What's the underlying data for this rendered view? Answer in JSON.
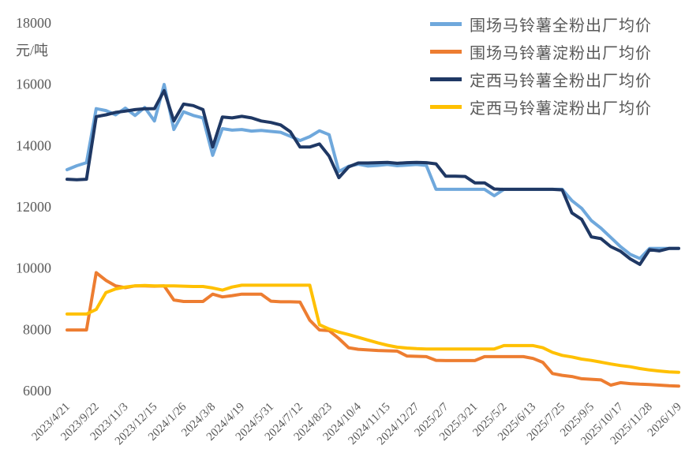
{
  "chart_data": {
    "type": "line",
    "title": "",
    "unit_label": "元/吨",
    "text_color": "#595959",
    "background_color": "#ffffff",
    "grid": false,
    "legend_position": "top-right",
    "ylim": [
      6000,
      18000
    ],
    "y_ticks": [
      18000,
      16000,
      14000,
      12000,
      10000,
      8000,
      6000
    ],
    "x_labels": [
      "2023/4/21",
      "2023/9/22",
      "2023/11/3",
      "2023/12/15",
      "2024/1/26",
      "2024/3/8",
      "2024/4/19",
      "2024/5/31",
      "2024/7/12",
      "2024/8/23",
      "2024/10/4",
      "2024/11/15",
      "2024/12/27",
      "2025/2/7",
      "2025/3/21",
      "2025/5/2",
      "2025/6/13",
      "2025/7/25",
      "2025/9/5",
      "2025/10/17",
      "2025/11/28",
      "2026/1/9"
    ],
    "label_every": 3,
    "series": [
      {
        "name": "围场马铃薯全粉出厂均价",
        "color": "#6FA8DC",
        "values": [
          13210,
          13340,
          13440,
          15200,
          15140,
          15000,
          15220,
          14980,
          15240,
          14800,
          15990,
          14520,
          15100,
          14980,
          14900,
          13680,
          14550,
          14500,
          14520,
          14470,
          14490,
          14460,
          14430,
          14300,
          14160,
          14290,
          14480,
          14350,
          13150,
          13320,
          13390,
          13330,
          13350,
          13380,
          13340,
          13360,
          13380,
          13350,
          12570,
          12570,
          12570,
          12570,
          12570,
          12570,
          12360,
          12570,
          12570,
          12570,
          12570,
          12570,
          12570,
          12570,
          12200,
          11950,
          11550,
          11300,
          11000,
          10700,
          10450,
          10310,
          10640,
          10640,
          10640,
          10640
        ]
      },
      {
        "name": "围场马铃薯淀粉出厂均价",
        "color": "#ED7D31",
        "values": [
          7980,
          7980,
          7980,
          9850,
          9600,
          9420,
          9360,
          9420,
          9420,
          9410,
          9420,
          8960,
          8910,
          8910,
          8910,
          9150,
          9060,
          9100,
          9150,
          9150,
          9150,
          8920,
          8900,
          8900,
          8890,
          8300,
          7980,
          7960,
          7700,
          7400,
          7350,
          7330,
          7310,
          7300,
          7290,
          7130,
          7120,
          7110,
          6990,
          6980,
          6980,
          6980,
          6980,
          7110,
          7110,
          7110,
          7110,
          7110,
          7050,
          6925,
          6560,
          6500,
          6460,
          6390,
          6370,
          6350,
          6180,
          6260,
          6230,
          6210,
          6200,
          6180,
          6160,
          6150
        ]
      },
      {
        "name": "定西马铃薯全粉出厂均价",
        "color": "#1F3864",
        "values": [
          12900,
          12880,
          12900,
          14940,
          15000,
          15080,
          15120,
          15170,
          15200,
          15200,
          15790,
          14800,
          15350,
          15300,
          15170,
          13950,
          14930,
          14900,
          14950,
          14900,
          14800,
          14750,
          14670,
          14450,
          13950,
          13950,
          14050,
          13650,
          12950,
          13300,
          13430,
          13430,
          13440,
          13450,
          13420,
          13440,
          13450,
          13440,
          13400,
          13000,
          13000,
          12990,
          12780,
          12780,
          12580,
          12570,
          12570,
          12570,
          12570,
          12570,
          12570,
          12550,
          11800,
          11590,
          11020,
          10960,
          10700,
          10550,
          10300,
          10120,
          10600,
          10560,
          10640,
          10640
        ]
      },
      {
        "name": "定西马铃薯淀粉出厂均价",
        "color": "#FFC000",
        "values": [
          8500,
          8500,
          8500,
          8650,
          9200,
          9320,
          9380,
          9420,
          9430,
          9420,
          9420,
          9420,
          9410,
          9400,
          9400,
          9350,
          9280,
          9380,
          9440,
          9440,
          9440,
          9440,
          9440,
          9440,
          9440,
          9440,
          8150,
          8010,
          7910,
          7830,
          7740,
          7650,
          7560,
          7480,
          7420,
          7390,
          7370,
          7360,
          7360,
          7360,
          7360,
          7360,
          7360,
          7360,
          7360,
          7470,
          7470,
          7470,
          7470,
          7400,
          7250,
          7150,
          7100,
          7030,
          6985,
          6930,
          6870,
          6820,
          6780,
          6720,
          6675,
          6640,
          6610,
          6600
        ]
      }
    ]
  }
}
